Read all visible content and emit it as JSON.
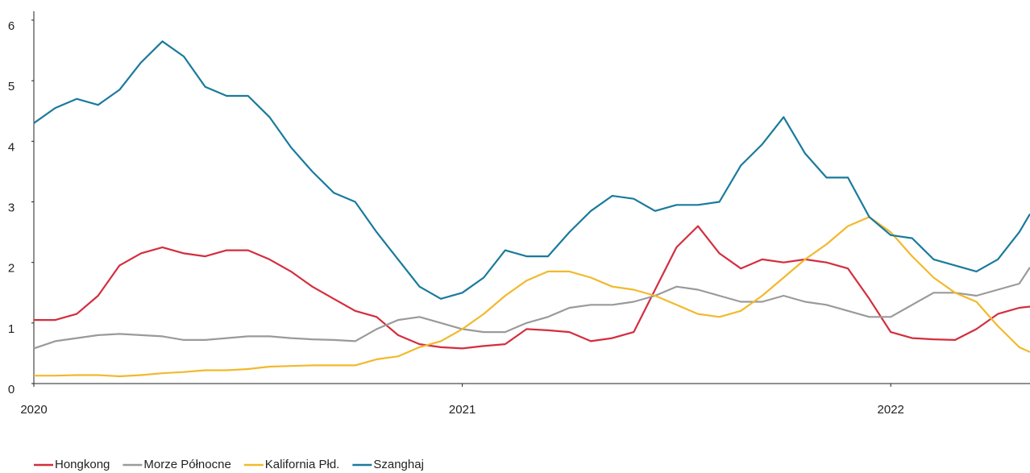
{
  "chart_data": {
    "type": "line",
    "x": [
      2020,
      2020.05,
      2020.1,
      2020.15,
      2020.2,
      2020.25,
      2020.3,
      2020.35,
      2020.4,
      2020.45,
      2020.5,
      2020.55,
      2020.6,
      2020.65,
      2020.7,
      2020.75,
      2020.8,
      2020.85,
      2020.9,
      2020.95,
      2021,
      2021.05,
      2021.1,
      2021.15,
      2021.2,
      2021.25,
      2021.3,
      2021.35,
      2021.4,
      2021.45,
      2021.5,
      2021.55,
      2021.6,
      2021.65,
      2021.7,
      2021.75,
      2021.8,
      2021.85,
      2021.9,
      2021.95,
      2022,
      2022.05,
      2022.1,
      2022.15,
      2022.2,
      2022.25,
      2022.3,
      2022.325
    ],
    "series": [
      {
        "name": "Hongkong",
        "color": "#d42d3e",
        "values": [
          1.05,
          1.05,
          1.15,
          1.45,
          1.95,
          2.15,
          2.25,
          2.15,
          2.1,
          2.2,
          2.2,
          2.05,
          1.85,
          1.6,
          1.4,
          1.2,
          1.1,
          0.8,
          0.65,
          0.6,
          0.58,
          0.62,
          0.65,
          0.9,
          0.88,
          0.85,
          0.7,
          0.75,
          0.85,
          1.55,
          2.25,
          2.6,
          2.15,
          1.9,
          2.05,
          2.0,
          2.05,
          2.0,
          1.9,
          1.4,
          0.85,
          0.75,
          0.73,
          0.72,
          0.9,
          1.15,
          1.25,
          1.27
        ]
      },
      {
        "name": "Morze Północne",
        "color": "#9a9a9a",
        "values": [
          0.58,
          0.7,
          0.75,
          0.8,
          0.82,
          0.8,
          0.78,
          0.72,
          0.72,
          0.75,
          0.78,
          0.78,
          0.75,
          0.73,
          0.72,
          0.7,
          0.9,
          1.05,
          1.1,
          1.0,
          0.9,
          0.85,
          0.85,
          1.0,
          1.1,
          1.25,
          1.3,
          1.3,
          1.35,
          1.45,
          1.6,
          1.55,
          1.45,
          1.35,
          1.35,
          1.45,
          1.35,
          1.3,
          1.2,
          1.1,
          1.1,
          1.3,
          1.5,
          1.5,
          1.45,
          1.55,
          1.65,
          1.92
        ]
      },
      {
        "name": "Kalifornia Płd.",
        "color": "#f2b92c",
        "values": [
          0.13,
          0.13,
          0.14,
          0.14,
          0.12,
          0.14,
          0.17,
          0.19,
          0.22,
          0.22,
          0.24,
          0.28,
          0.29,
          0.3,
          0.3,
          0.3,
          0.4,
          0.45,
          0.6,
          0.7,
          0.9,
          1.15,
          1.45,
          1.7,
          1.85,
          1.85,
          1.75,
          1.6,
          1.55,
          1.45,
          1.3,
          1.15,
          1.1,
          1.2,
          1.45,
          1.75,
          2.05,
          2.3,
          2.6,
          2.75,
          2.5,
          2.1,
          1.75,
          1.5,
          1.35,
          0.95,
          0.6,
          0.52
        ]
      },
      {
        "name": "Szanghaj",
        "color": "#1a7a9c",
        "values": [
          4.3,
          4.55,
          4.7,
          4.6,
          4.85,
          5.3,
          5.65,
          5.4,
          4.9,
          4.75,
          4.75,
          4.4,
          3.9,
          3.5,
          3.15,
          3.0,
          2.5,
          2.05,
          1.6,
          1.4,
          1.5,
          1.75,
          2.2,
          2.1,
          2.1,
          2.5,
          2.85,
          3.1,
          3.05,
          2.85,
          2.95,
          2.95,
          3.0,
          3.6,
          3.95,
          4.4,
          3.8,
          3.4,
          3.4,
          2.75,
          2.45,
          2.4,
          2.05,
          1.95,
          1.85,
          2.05,
          2.5,
          2.8
        ]
      }
    ],
    "xlim": [
      2020,
      2022.325
    ],
    "xticks": [
      2020,
      2021,
      2022
    ],
    "ylim": [
      0,
      6
    ],
    "yticks": [
      0,
      1,
      2,
      3,
      4,
      5,
      6
    ],
    "legend": "bottom-left"
  }
}
